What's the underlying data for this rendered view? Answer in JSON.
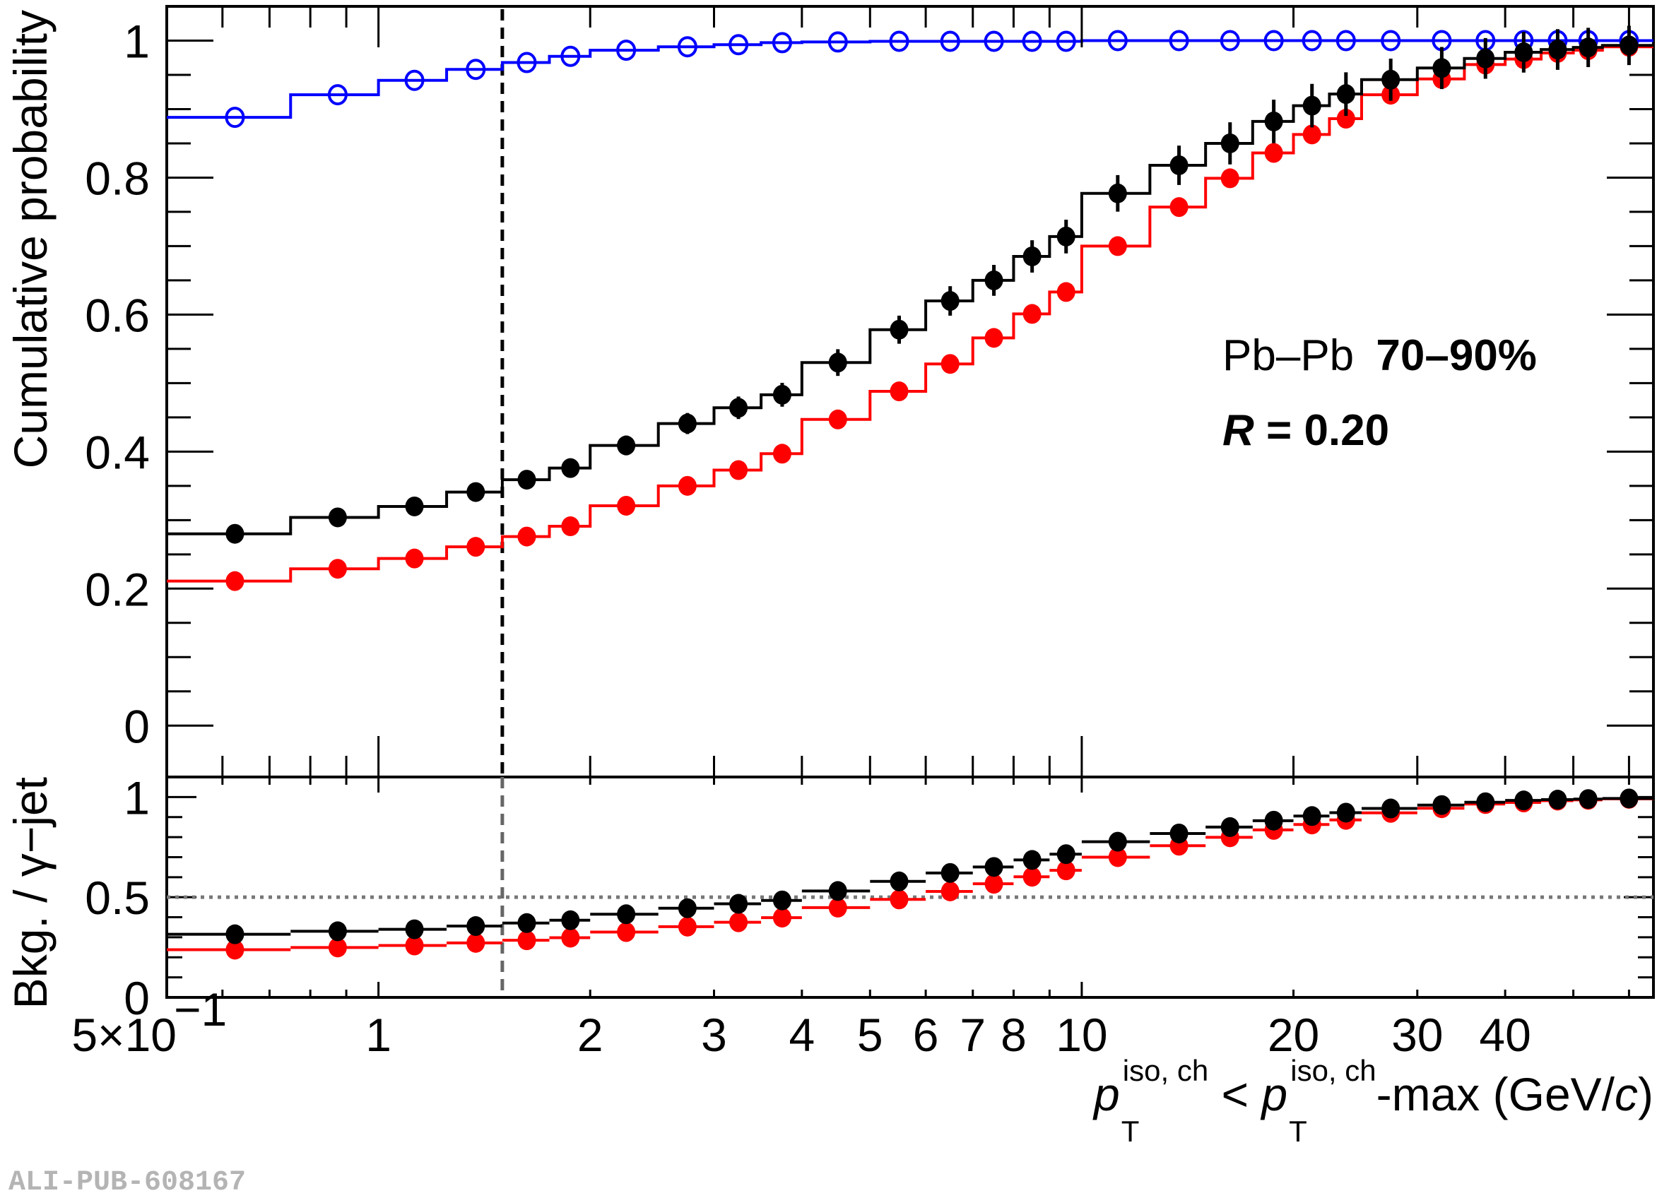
{
  "chart_data": [
    {
      "panel": "upper",
      "type": "step-scatter",
      "ylabel": "Cumulative probability",
      "xscale": "log",
      "xlim": [
        0.5,
        65
      ],
      "ylim": [
        -0.075,
        1.05
      ],
      "yticks": [
        0,
        0.2,
        0.4,
        0.6,
        0.8,
        1
      ],
      "ytick_labels": [
        "0",
        "0.2",
        "0.4",
        "0.6",
        "0.8",
        "1"
      ],
      "annotations": {
        "system": "Pb–Pb",
        "centrality": "70–90%",
        "radius_var": "R",
        "radius_eq": " = 0.20"
      },
      "cut_line_x": 1.5,
      "bin_edges": [
        0.5,
        0.75,
        1.0,
        1.25,
        1.5,
        1.75,
        2.0,
        2.5,
        3.0,
        3.5,
        4.0,
        5.0,
        6.0,
        7.0,
        8.0,
        9.0,
        10.0,
        12.5,
        15.0,
        17.5,
        20.0,
        22.5,
        25.0,
        30.0,
        35.0,
        40.0,
        45.0,
        50.0,
        55.0,
        65.0
      ],
      "x": [
        0.625,
        0.875,
        1.125,
        1.375,
        1.625,
        1.875,
        2.25,
        2.75,
        3.25,
        3.75,
        4.5,
        5.5,
        6.5,
        7.5,
        8.5,
        9.5,
        11.25,
        13.75,
        16.25,
        18.75,
        21.25,
        23.75,
        27.5,
        32.5,
        37.5,
        42.5,
        47.5,
        52.5,
        60
      ],
      "series": [
        {
          "name": "black",
          "color": "#000000",
          "marker": "filled-circle",
          "values": [
            0.28,
            0.304,
            0.32,
            0.341,
            0.359,
            0.376,
            0.409,
            0.441,
            0.464,
            0.483,
            0.53,
            0.578,
            0.62,
            0.65,
            0.685,
            0.714,
            0.777,
            0.818,
            0.85,
            0.882,
            0.905,
            0.922,
            0.943,
            0.96,
            0.974,
            0.983,
            0.987,
            0.99,
            0.993
          ],
          "errors": [
            0.008,
            0.009,
            0.01,
            0.011,
            0.012,
            0.012,
            0.014,
            0.015,
            0.016,
            0.017,
            0.019,
            0.02,
            0.021,
            0.022,
            0.023,
            0.024,
            0.026,
            0.028,
            0.03,
            0.031,
            0.031,
            0.031,
            0.03,
            0.03,
            0.029,
            0.029,
            0.029,
            0.028,
            0.028
          ]
        },
        {
          "name": "red",
          "color": "#ff0000",
          "marker": "filled-circle",
          "values": [
            0.211,
            0.229,
            0.244,
            0.261,
            0.276,
            0.291,
            0.321,
            0.35,
            0.373,
            0.397,
            0.447,
            0.488,
            0.528,
            0.566,
            0.601,
            0.633,
            0.7,
            0.757,
            0.799,
            0.836,
            0.863,
            0.886,
            0.921,
            0.944,
            0.965,
            0.973,
            0.982,
            0.986,
            0.991
          ],
          "errors": []
        },
        {
          "name": "blue",
          "color": "#0000ff",
          "marker": "open-circle",
          "values": [
            0.888,
            0.921,
            0.942,
            0.958,
            0.968,
            0.977,
            0.986,
            0.991,
            0.994,
            0.997,
            0.998,
            0.999,
            0.999,
            0.999,
            0.999,
            0.999,
            1.0,
            1.0,
            1.0,
            1.0,
            1.0,
            1.0,
            1.0,
            1.0,
            1.0,
            1.0,
            1.0,
            1.0,
            1.0
          ],
          "errors": []
        }
      ]
    },
    {
      "panel": "lower",
      "type": "scatter",
      "ylabel": "Bkg. / γ−jet",
      "xlabel_parts": [
        "p",
        "T",
        "iso, ch",
        " < ",
        "p",
        "T",
        "iso, ch",
        "-max (GeV/",
        "c",
        ")"
      ],
      "xscale": "log",
      "xlim": [
        0.5,
        65
      ],
      "ylim": [
        0,
        1.1
      ],
      "yticks": [
        0,
        0.5,
        1
      ],
      "ytick_labels": [
        "0",
        "0.5",
        "1"
      ],
      "reference_line_y": 0.5,
      "xticks": [
        0.5,
        1,
        2,
        3,
        4,
        5,
        6,
        7,
        8,
        10,
        20,
        30,
        40
      ],
      "xtick_labels": [
        "5×10",
        "1",
        "2",
        "3",
        "4",
        "5",
        "6",
        "7",
        "8",
        "10",
        "20",
        "30",
        "40"
      ],
      "xtick_first_exponent": "−1",
      "series": [
        {
          "name": "black-ratio",
          "color": "#000000",
          "values": [
            0.315,
            0.33,
            0.34,
            0.356,
            0.371,
            0.385,
            0.415,
            0.445,
            0.467,
            0.484,
            0.531,
            0.579,
            0.621,
            0.651,
            0.686,
            0.715,
            0.777,
            0.818,
            0.85,
            0.882,
            0.905,
            0.922,
            0.943,
            0.96,
            0.974,
            0.983,
            0.987,
            0.99,
            0.993
          ]
        },
        {
          "name": "red-ratio",
          "color": "#ff0000",
          "values": [
            0.238,
            0.249,
            0.259,
            0.272,
            0.285,
            0.298,
            0.326,
            0.353,
            0.375,
            0.398,
            0.448,
            0.489,
            0.529,
            0.567,
            0.602,
            0.634,
            0.7,
            0.757,
            0.799,
            0.836,
            0.863,
            0.886,
            0.921,
            0.944,
            0.965,
            0.973,
            0.982,
            0.986,
            0.991
          ]
        }
      ]
    }
  ],
  "watermark": "ALI-PUB-608167"
}
